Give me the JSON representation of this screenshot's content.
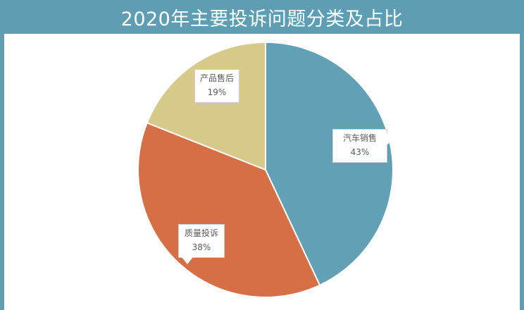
{
  "title": "2020年主要投诉问题分类及占比",
  "colors": {
    "header": "#5f9eb2",
    "background": "#ffffff",
    "label_text": "#595959"
  },
  "chart_data": {
    "type": "pie",
    "title": "2020年主要投诉问题分类及占比",
    "start_angle_deg": 0,
    "direction": "clockwise",
    "legend": "none",
    "slices": [
      {
        "label": "汽车销售",
        "value": 43,
        "display": "43%",
        "color": "#62a0b5"
      },
      {
        "label": "质量投诉",
        "value": 38,
        "display": "38%",
        "color": "#d66f46"
      },
      {
        "label": "产品售后",
        "value": 19,
        "display": "19%",
        "color": "#d6c98a"
      }
    ]
  }
}
